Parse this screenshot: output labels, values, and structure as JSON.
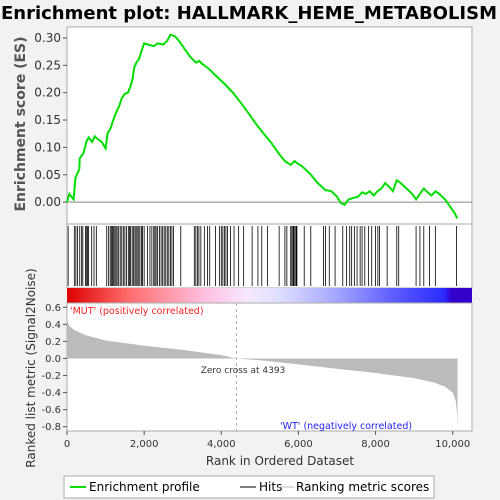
{
  "chart_data": {
    "type": "line",
    "title": "Enrichment plot: HALLMARK_HEME_METABOLISM",
    "es_panel": {
      "ylabel": "Enrichment score (ES)",
      "ylim": [
        -0.04,
        0.32
      ],
      "yticks": [
        "0.00",
        "0.05",
        "0.10",
        "0.15",
        "0.20",
        "0.25",
        "0.30"
      ],
      "ytick_values": [
        0,
        0.05,
        0.1,
        0.15,
        0.2,
        0.25,
        0.3
      ],
      "line_color": "#00dd00",
      "points": [
        [
          0,
          0.0
        ],
        [
          60,
          0.015
        ],
        [
          170,
          0.005
        ],
        [
          220,
          0.045
        ],
        [
          320,
          0.06
        ],
        [
          330,
          0.08
        ],
        [
          430,
          0.09
        ],
        [
          500,
          0.11
        ],
        [
          560,
          0.118
        ],
        [
          650,
          0.11
        ],
        [
          720,
          0.12
        ],
        [
          800,
          0.115
        ],
        [
          900,
          0.11
        ],
        [
          1000,
          0.098
        ],
        [
          1050,
          0.125
        ],
        [
          1130,
          0.135
        ],
        [
          1200,
          0.15
        ],
        [
          1280,
          0.165
        ],
        [
          1350,
          0.175
        ],
        [
          1420,
          0.19
        ],
        [
          1500,
          0.198
        ],
        [
          1580,
          0.2
        ],
        [
          1650,
          0.212
        ],
        [
          1700,
          0.225
        ],
        [
          1740,
          0.245
        ],
        [
          1800,
          0.255
        ],
        [
          1870,
          0.262
        ],
        [
          1930,
          0.275
        ],
        [
          2000,
          0.29
        ],
        [
          2100,
          0.288
        ],
        [
          2250,
          0.285
        ],
        [
          2350,
          0.29
        ],
        [
          2500,
          0.288
        ],
        [
          2600,
          0.295
        ],
        [
          2680,
          0.306
        ],
        [
          2800,
          0.303
        ],
        [
          2900,
          0.295
        ],
        [
          3050,
          0.28
        ],
        [
          3200,
          0.265
        ],
        [
          3350,
          0.255
        ],
        [
          3430,
          0.258
        ],
        [
          3500,
          0.253
        ],
        [
          3650,
          0.245
        ],
        [
          3800,
          0.235
        ],
        [
          3950,
          0.225
        ],
        [
          4100,
          0.215
        ],
        [
          4300,
          0.2
        ],
        [
          4500,
          0.182
        ],
        [
          4700,
          0.163
        ],
        [
          4900,
          0.143
        ],
        [
          5100,
          0.125
        ],
        [
          5300,
          0.108
        ],
        [
          5500,
          0.088
        ],
        [
          5650,
          0.075
        ],
        [
          5800,
          0.068
        ],
        [
          5900,
          0.075
        ],
        [
          5950,
          0.072
        ],
        [
          6100,
          0.065
        ],
        [
          6300,
          0.052
        ],
        [
          6500,
          0.035
        ],
        [
          6700,
          0.022
        ],
        [
          6850,
          0.02
        ],
        [
          7000,
          0.01
        ],
        [
          7100,
          -0.002
        ],
        [
          7200,
          -0.005
        ],
        [
          7300,
          0.005
        ],
        [
          7450,
          0.008
        ],
        [
          7550,
          0.01
        ],
        [
          7650,
          0.018
        ],
        [
          7750,
          0.015
        ],
        [
          7850,
          0.02
        ],
        [
          7950,
          0.012
        ],
        [
          8050,
          0.02
        ],
        [
          8150,
          0.025
        ],
        [
          8250,
          0.035
        ],
        [
          8350,
          0.028
        ],
        [
          8450,
          0.02
        ],
        [
          8550,
          0.04
        ],
        [
          8650,
          0.035
        ],
        [
          8800,
          0.025
        ],
        [
          8950,
          0.015
        ],
        [
          9050,
          0.005
        ],
        [
          9150,
          0.015
        ],
        [
          9250,
          0.025
        ],
        [
          9350,
          0.018
        ],
        [
          9450,
          0.012
        ],
        [
          9550,
          0.02
        ],
        [
          9650,
          0.015
        ],
        [
          9800,
          0.005
        ],
        [
          9950,
          -0.01
        ],
        [
          10050,
          -0.02
        ],
        [
          10120,
          -0.03
        ]
      ]
    },
    "hits": [
      30,
      190,
      230,
      270,
      330,
      380,
      410,
      480,
      500,
      530,
      560,
      640,
      700,
      760,
      1030,
      1080,
      1120,
      1150,
      1180,
      1210,
      1240,
      1270,
      1300,
      1340,
      1380,
      1420,
      1460,
      1500,
      1540,
      1590,
      1620,
      1650,
      1690,
      1720,
      1760,
      1790,
      1820,
      1860,
      1890,
      1930,
      1960,
      2000,
      2090,
      2150,
      2200,
      2250,
      2280,
      2310,
      2350,
      2400,
      2440,
      2480,
      2520,
      2560,
      2600,
      2640,
      2680,
      2720,
      2760,
      2950,
      3300,
      3340,
      3380,
      3420,
      3470,
      3560,
      3640,
      3700,
      3850,
      3950,
      4000,
      4040,
      4080,
      4120,
      4160,
      4240,
      4330,
      4450,
      4580,
      4800,
      4950,
      5050,
      5200,
      5500,
      5650,
      5700,
      5800,
      5830,
      5860,
      5880,
      5910,
      5940,
      5960,
      6150,
      6320,
      6650,
      6700,
      6800,
      6950,
      7150,
      7250,
      7330,
      7380,
      7450,
      7520,
      7600,
      7650,
      7720,
      7820,
      7900,
      8000,
      8060,
      8100,
      8300,
      8550,
      8600,
      9050,
      9150,
      9250,
      9400,
      9550,
      10100
    ],
    "ranking_panel": {
      "ylabel": "Ranked list metric (Signal2Noise)",
      "ylim": [
        -0.85,
        0.65
      ],
      "yticks": [
        "0.6",
        "0.4",
        "0.2",
        "0.0",
        "-0.2",
        "-0.4",
        "-0.6",
        "-0.8"
      ],
      "ytick_values": [
        0.6,
        0.4,
        0.2,
        0.0,
        -0.2,
        -0.4,
        -0.6,
        -0.8
      ],
      "profile": [
        [
          0,
          0.6
        ],
        [
          10,
          0.45
        ],
        [
          60,
          0.38
        ],
        [
          200,
          0.33
        ],
        [
          500,
          0.27
        ],
        [
          1000,
          0.21
        ],
        [
          2000,
          0.15
        ],
        [
          3000,
          0.1
        ],
        [
          4000,
          0.04
        ],
        [
          4393,
          0.0
        ],
        [
          5000,
          -0.02
        ],
        [
          6000,
          -0.07
        ],
        [
          7000,
          -0.12
        ],
        [
          8000,
          -0.17
        ],
        [
          9000,
          -0.23
        ],
        [
          9500,
          -0.28
        ],
        [
          9800,
          -0.33
        ],
        [
          10000,
          -0.4
        ],
        [
          10080,
          -0.5
        ],
        [
          10110,
          -0.65
        ],
        [
          10125,
          -0.83
        ]
      ],
      "zero_cross_label": "Zero cross at 4393",
      "zero_cross_rank": 4393,
      "pos_label": "'MUT' (positively correlated)",
      "neg_label": "'WT' (negatively correlated)",
      "pos_color": "#ff2222",
      "neg_color": "#2222ff"
    },
    "xlabel": "Rank in Ordered Dataset",
    "xlim": [
      0,
      10500
    ],
    "xticks": [
      "0",
      "2,000",
      "4,000",
      "6,000",
      "8,000",
      "10,000"
    ],
    "xtick_values": [
      0,
      2000,
      4000,
      6000,
      8000,
      10000
    ],
    "legend": {
      "position": "bottom",
      "items": [
        "Enrichment profile",
        "Hits",
        "Ranking metric scores"
      ]
    }
  }
}
